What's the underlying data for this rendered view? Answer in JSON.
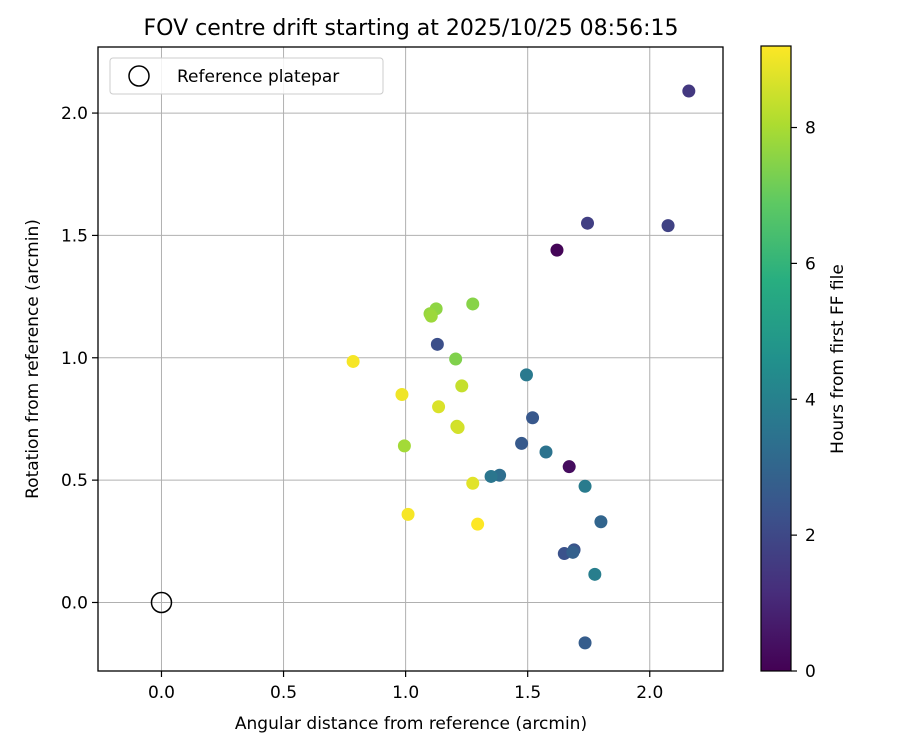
{
  "chart_data": {
    "type": "scatter",
    "title": "FOV centre drift starting at 2025/10/25 08:56:15",
    "xlabel": "Angular distance from reference (arcmin)",
    "ylabel": "Rotation from reference (arcmin)",
    "xlim": [
      -0.26,
      2.3
    ],
    "ylim": [
      -0.28,
      2.27
    ],
    "xticks": [
      0.0,
      0.5,
      1.0,
      1.5,
      2.0
    ],
    "xtick_labels": [
      "0.0",
      "0.5",
      "1.0",
      "1.5",
      "2.0"
    ],
    "yticks": [
      0.0,
      0.5,
      1.0,
      1.5,
      2.0
    ],
    "ytick_labels": [
      "0.0",
      "0.5",
      "1.0",
      "1.5",
      "2.0"
    ],
    "grid": true,
    "legend": {
      "position": "top-left",
      "entries": [
        "Reference platepar"
      ]
    },
    "reference_point": {
      "x": 0.0,
      "y": 0.0,
      "label": "Reference platepar"
    },
    "colorbar": {
      "label": "Hours from first FF file",
      "colormap": "viridis",
      "range": [
        0,
        9.2
      ],
      "ticks": [
        0,
        2,
        4,
        6,
        8
      ],
      "tick_labels": [
        "0",
        "2",
        "4",
        "6",
        "8"
      ]
    },
    "points": [
      {
        "x": 1.62,
        "y": 1.44,
        "hours": 0.1
      },
      {
        "x": 1.67,
        "y": 0.555,
        "hours": 0.3
      },
      {
        "x": 2.16,
        "y": 2.09,
        "hours": 1.5
      },
      {
        "x": 1.745,
        "y": 1.55,
        "hours": 1.7
      },
      {
        "x": 2.075,
        "y": 1.54,
        "hours": 1.8
      },
      {
        "x": 1.13,
        "y": 1.055,
        "hours": 2.2
      },
      {
        "x": 1.65,
        "y": 0.2,
        "hours": 2.3
      },
      {
        "x": 1.69,
        "y": 0.215,
        "hours": 2.4
      },
      {
        "x": 1.52,
        "y": 0.755,
        "hours": 2.5
      },
      {
        "x": 1.475,
        "y": 0.65,
        "hours": 2.6
      },
      {
        "x": 1.735,
        "y": -0.165,
        "hours": 2.7
      },
      {
        "x": 1.685,
        "y": 0.205,
        "hours": 2.8
      },
      {
        "x": 1.8,
        "y": 0.33,
        "hours": 3.0
      },
      {
        "x": 1.385,
        "y": 0.52,
        "hours": 3.3
      },
      {
        "x": 1.575,
        "y": 0.615,
        "hours": 3.5
      },
      {
        "x": 1.35,
        "y": 0.515,
        "hours": 3.6
      },
      {
        "x": 1.495,
        "y": 0.93,
        "hours": 3.7
      },
      {
        "x": 1.735,
        "y": 0.475,
        "hours": 3.8
      },
      {
        "x": 1.775,
        "y": 0.115,
        "hours": 3.9
      },
      {
        "x": 1.205,
        "y": 0.995,
        "hours": 7.4
      },
      {
        "x": 1.275,
        "y": 1.22,
        "hours": 7.5
      },
      {
        "x": 1.125,
        "y": 1.2,
        "hours": 7.6
      },
      {
        "x": 1.1,
        "y": 1.18,
        "hours": 7.7
      },
      {
        "x": 1.105,
        "y": 1.17,
        "hours": 7.8
      },
      {
        "x": 0.995,
        "y": 0.64,
        "hours": 7.9
      },
      {
        "x": 1.23,
        "y": 0.885,
        "hours": 8.4
      },
      {
        "x": 1.21,
        "y": 0.72,
        "hours": 8.5
      },
      {
        "x": 1.215,
        "y": 0.715,
        "hours": 8.6
      },
      {
        "x": 1.135,
        "y": 0.8,
        "hours": 8.7
      },
      {
        "x": 1.275,
        "y": 0.487,
        "hours": 8.8
      },
      {
        "x": 0.985,
        "y": 0.85,
        "hours": 9.0
      },
      {
        "x": 0.785,
        "y": 0.985,
        "hours": 9.1
      },
      {
        "x": 1.01,
        "y": 0.36,
        "hours": 9.1
      },
      {
        "x": 1.295,
        "y": 0.32,
        "hours": 9.2
      }
    ]
  }
}
